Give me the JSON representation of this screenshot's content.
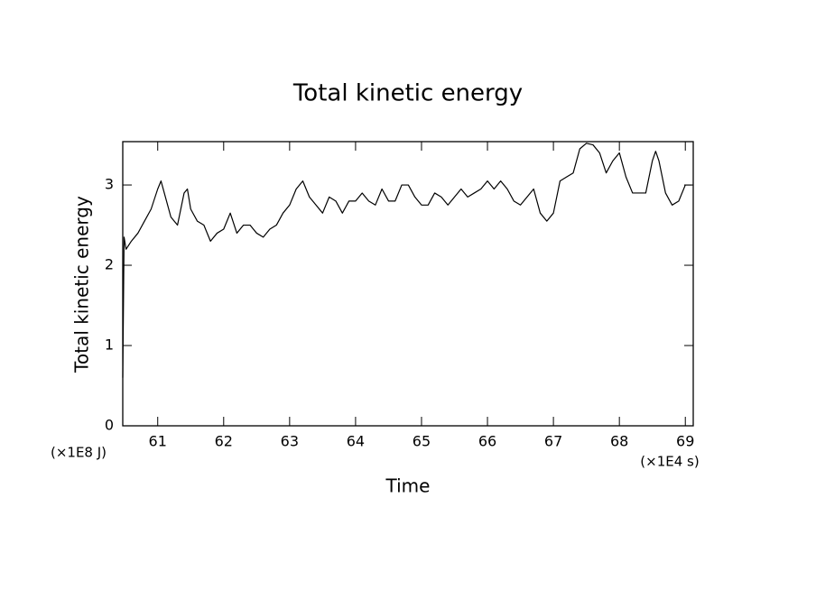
{
  "chart_data": {
    "type": "line",
    "title": "Total kinetic energy",
    "x_label": "Time",
    "y_label": "Total kinetic energy",
    "x_unit": "(×1E4 s)",
    "y_unit": "(×1E8 J)",
    "x": [
      60.47,
      60.49,
      60.52,
      60.6,
      60.7,
      60.8,
      60.9,
      61.0,
      61.05,
      61.1,
      61.2,
      61.3,
      61.4,
      61.45,
      61.5,
      61.6,
      61.7,
      61.8,
      61.9,
      62.0,
      62.1,
      62.2,
      62.3,
      62.4,
      62.5,
      62.6,
      62.7,
      62.8,
      62.9,
      63.0,
      63.1,
      63.2,
      63.3,
      63.4,
      63.5,
      63.6,
      63.7,
      63.8,
      63.9,
      64.0,
      64.1,
      64.2,
      64.3,
      64.4,
      64.5,
      64.6,
      64.7,
      64.8,
      64.9,
      65.0,
      65.1,
      65.2,
      65.3,
      65.4,
      65.5,
      65.6,
      65.7,
      65.8,
      65.9,
      66.0,
      66.1,
      66.2,
      66.3,
      66.4,
      66.5,
      66.6,
      66.7,
      66.8,
      66.9,
      67.0,
      67.1,
      67.2,
      67.3,
      67.4,
      67.5,
      67.6,
      67.7,
      67.8,
      67.9,
      68.0,
      68.1,
      68.2,
      68.3,
      68.4,
      68.5,
      68.55,
      68.6,
      68.7,
      68.8,
      68.9,
      69.0,
      69.1
    ],
    "series": [
      {
        "name": "Total kinetic energy",
        "color": "#000000",
        "values": [
          0.6,
          2.35,
          2.2,
          2.3,
          2.4,
          2.55,
          2.7,
          2.95,
          3.05,
          2.9,
          2.6,
          2.5,
          2.9,
          2.95,
          2.7,
          2.55,
          2.5,
          2.3,
          2.4,
          2.45,
          2.65,
          2.4,
          2.5,
          2.5,
          2.4,
          2.35,
          2.45,
          2.5,
          2.65,
          2.75,
          2.95,
          3.05,
          2.85,
          2.75,
          2.65,
          2.85,
          2.8,
          2.65,
          2.8,
          2.8,
          2.9,
          2.8,
          2.75,
          2.95,
          2.8,
          2.8,
          3.0,
          3.0,
          2.85,
          2.75,
          2.75,
          2.9,
          2.85,
          2.75,
          2.85,
          2.95,
          2.85,
          2.9,
          2.95,
          3.05,
          2.95,
          3.05,
          2.95,
          2.8,
          2.75,
          2.85,
          2.95,
          2.65,
          2.55,
          2.65,
          3.05,
          3.1,
          3.15,
          3.45,
          3.52,
          3.5,
          3.4,
          3.15,
          3.3,
          3.4,
          3.1,
          2.9,
          2.9,
          2.9,
          3.3,
          3.42,
          3.3,
          2.9,
          2.75,
          2.8,
          3.0,
          3.0
        ]
      }
    ],
    "xlim": [
      60.47,
      69.12
    ],
    "ylim": [
      0,
      3.54
    ],
    "xticks": [
      61,
      62,
      63,
      64,
      65,
      66,
      67,
      68,
      69
    ],
    "yticks": [
      0,
      1,
      2,
      3
    ]
  }
}
